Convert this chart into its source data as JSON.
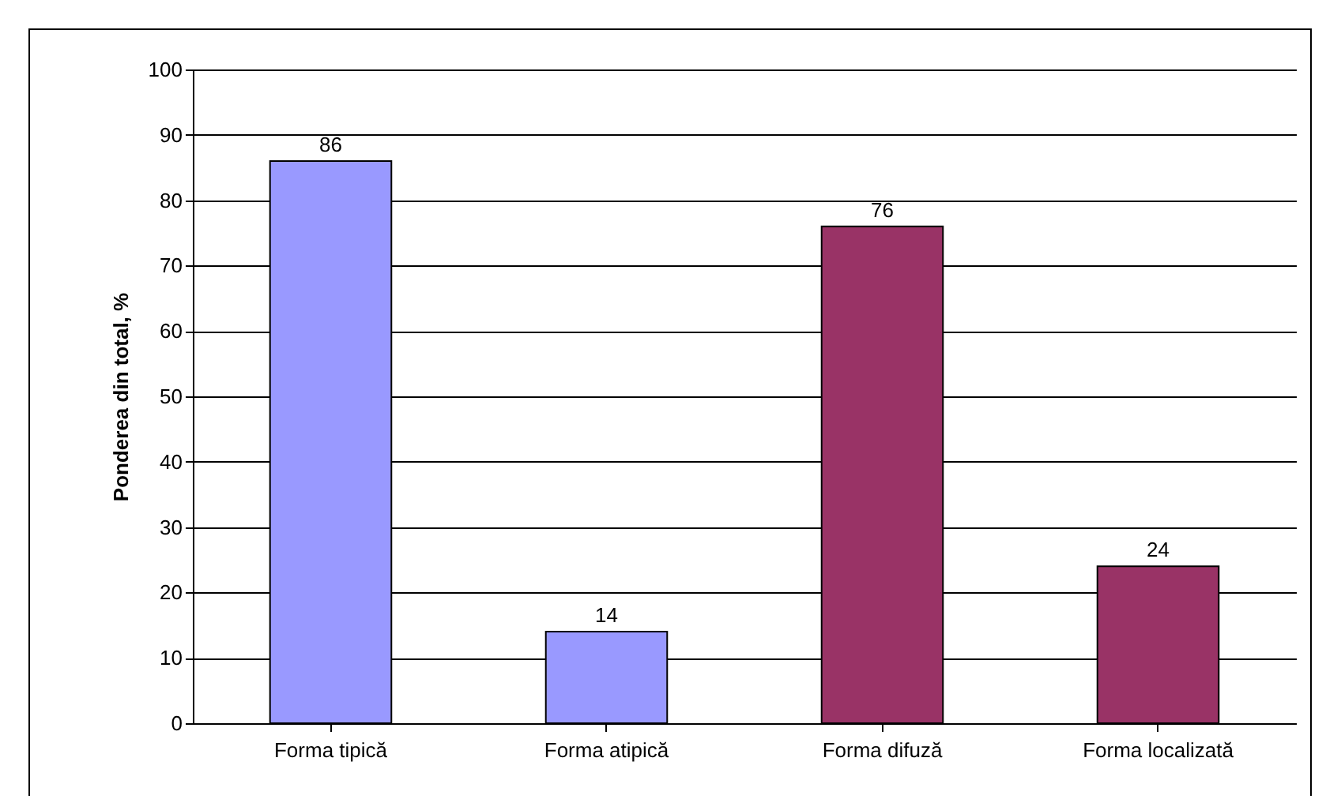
{
  "chart_data": {
    "type": "bar",
    "ylabel": "Ponderea din total, %",
    "categories": [
      "Forma tipică",
      "Forma atipică",
      "Forma difuză",
      "Forma localizată"
    ],
    "values": [
      86,
      14,
      76,
      24
    ],
    "colors": [
      "#9999ff",
      "#9999ff",
      "#993366",
      "#993366"
    ],
    "ylim": [
      0,
      100
    ],
    "yticks": [
      0,
      10,
      20,
      30,
      40,
      50,
      60,
      70,
      80,
      90,
      100
    ],
    "grid": "y",
    "data_labels": true,
    "legend": false
  }
}
